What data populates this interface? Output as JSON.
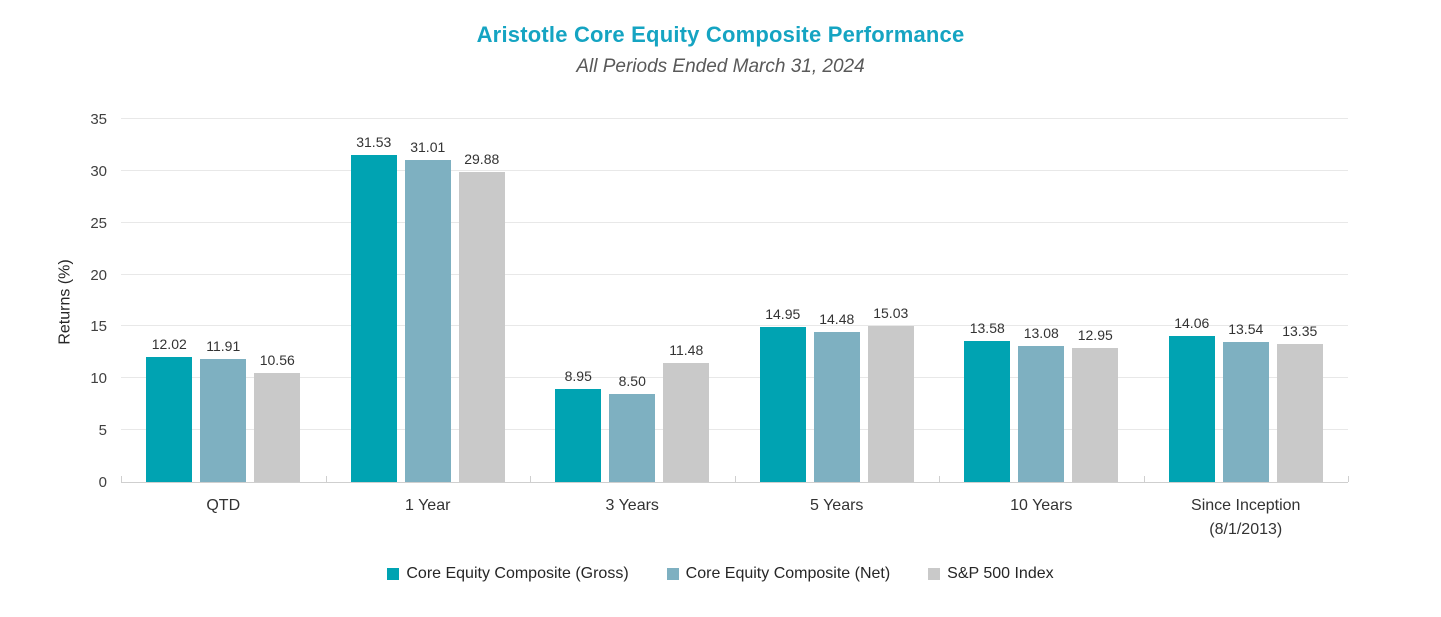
{
  "chart_data": {
    "type": "bar",
    "title": "Aristotle Core Equity Composite Performance",
    "subtitle": "All Periods Ended March 31, 2024",
    "ylabel": "Returns (%)",
    "xlabel": "",
    "ylim": [
      0,
      35
    ],
    "ytick_step": 5,
    "grid": true,
    "legend_position": "bottom",
    "categories": [
      "QTD",
      "1 Year",
      "3 Years",
      "5 Years",
      "10 Years",
      "Since Inception\n(8/1/2013)"
    ],
    "series": [
      {
        "name": "Core Equity Composite (Gross)",
        "color": "#00A3B2",
        "values": [
          12.02,
          31.53,
          8.95,
          14.95,
          13.58,
          14.06
        ],
        "labels": [
          "12.02",
          "31.53",
          "8.95",
          "14.95",
          "13.58",
          "14.06"
        ]
      },
      {
        "name": "Core Equity Composite (Net)",
        "color": "#7EB0C1",
        "values": [
          11.91,
          31.01,
          8.5,
          14.48,
          13.08,
          13.54
        ],
        "labels": [
          "11.91",
          "31.01",
          "8.50",
          "14.48",
          "13.08",
          "13.54"
        ]
      },
      {
        "name": "S&P 500 Index",
        "color": "#C9C9C9",
        "values": [
          10.56,
          29.88,
          11.48,
          15.03,
          12.95,
          13.35
        ],
        "labels": [
          "10.56",
          "29.88",
          "11.48",
          "15.03",
          "12.95",
          "13.35"
        ]
      }
    ],
    "colors": {
      "title": "#15A4C2",
      "subtitle": "#595959",
      "axis_text": "#404040",
      "gridline": "#E8E8E8",
      "axis_line": "#CFCFCF"
    }
  }
}
